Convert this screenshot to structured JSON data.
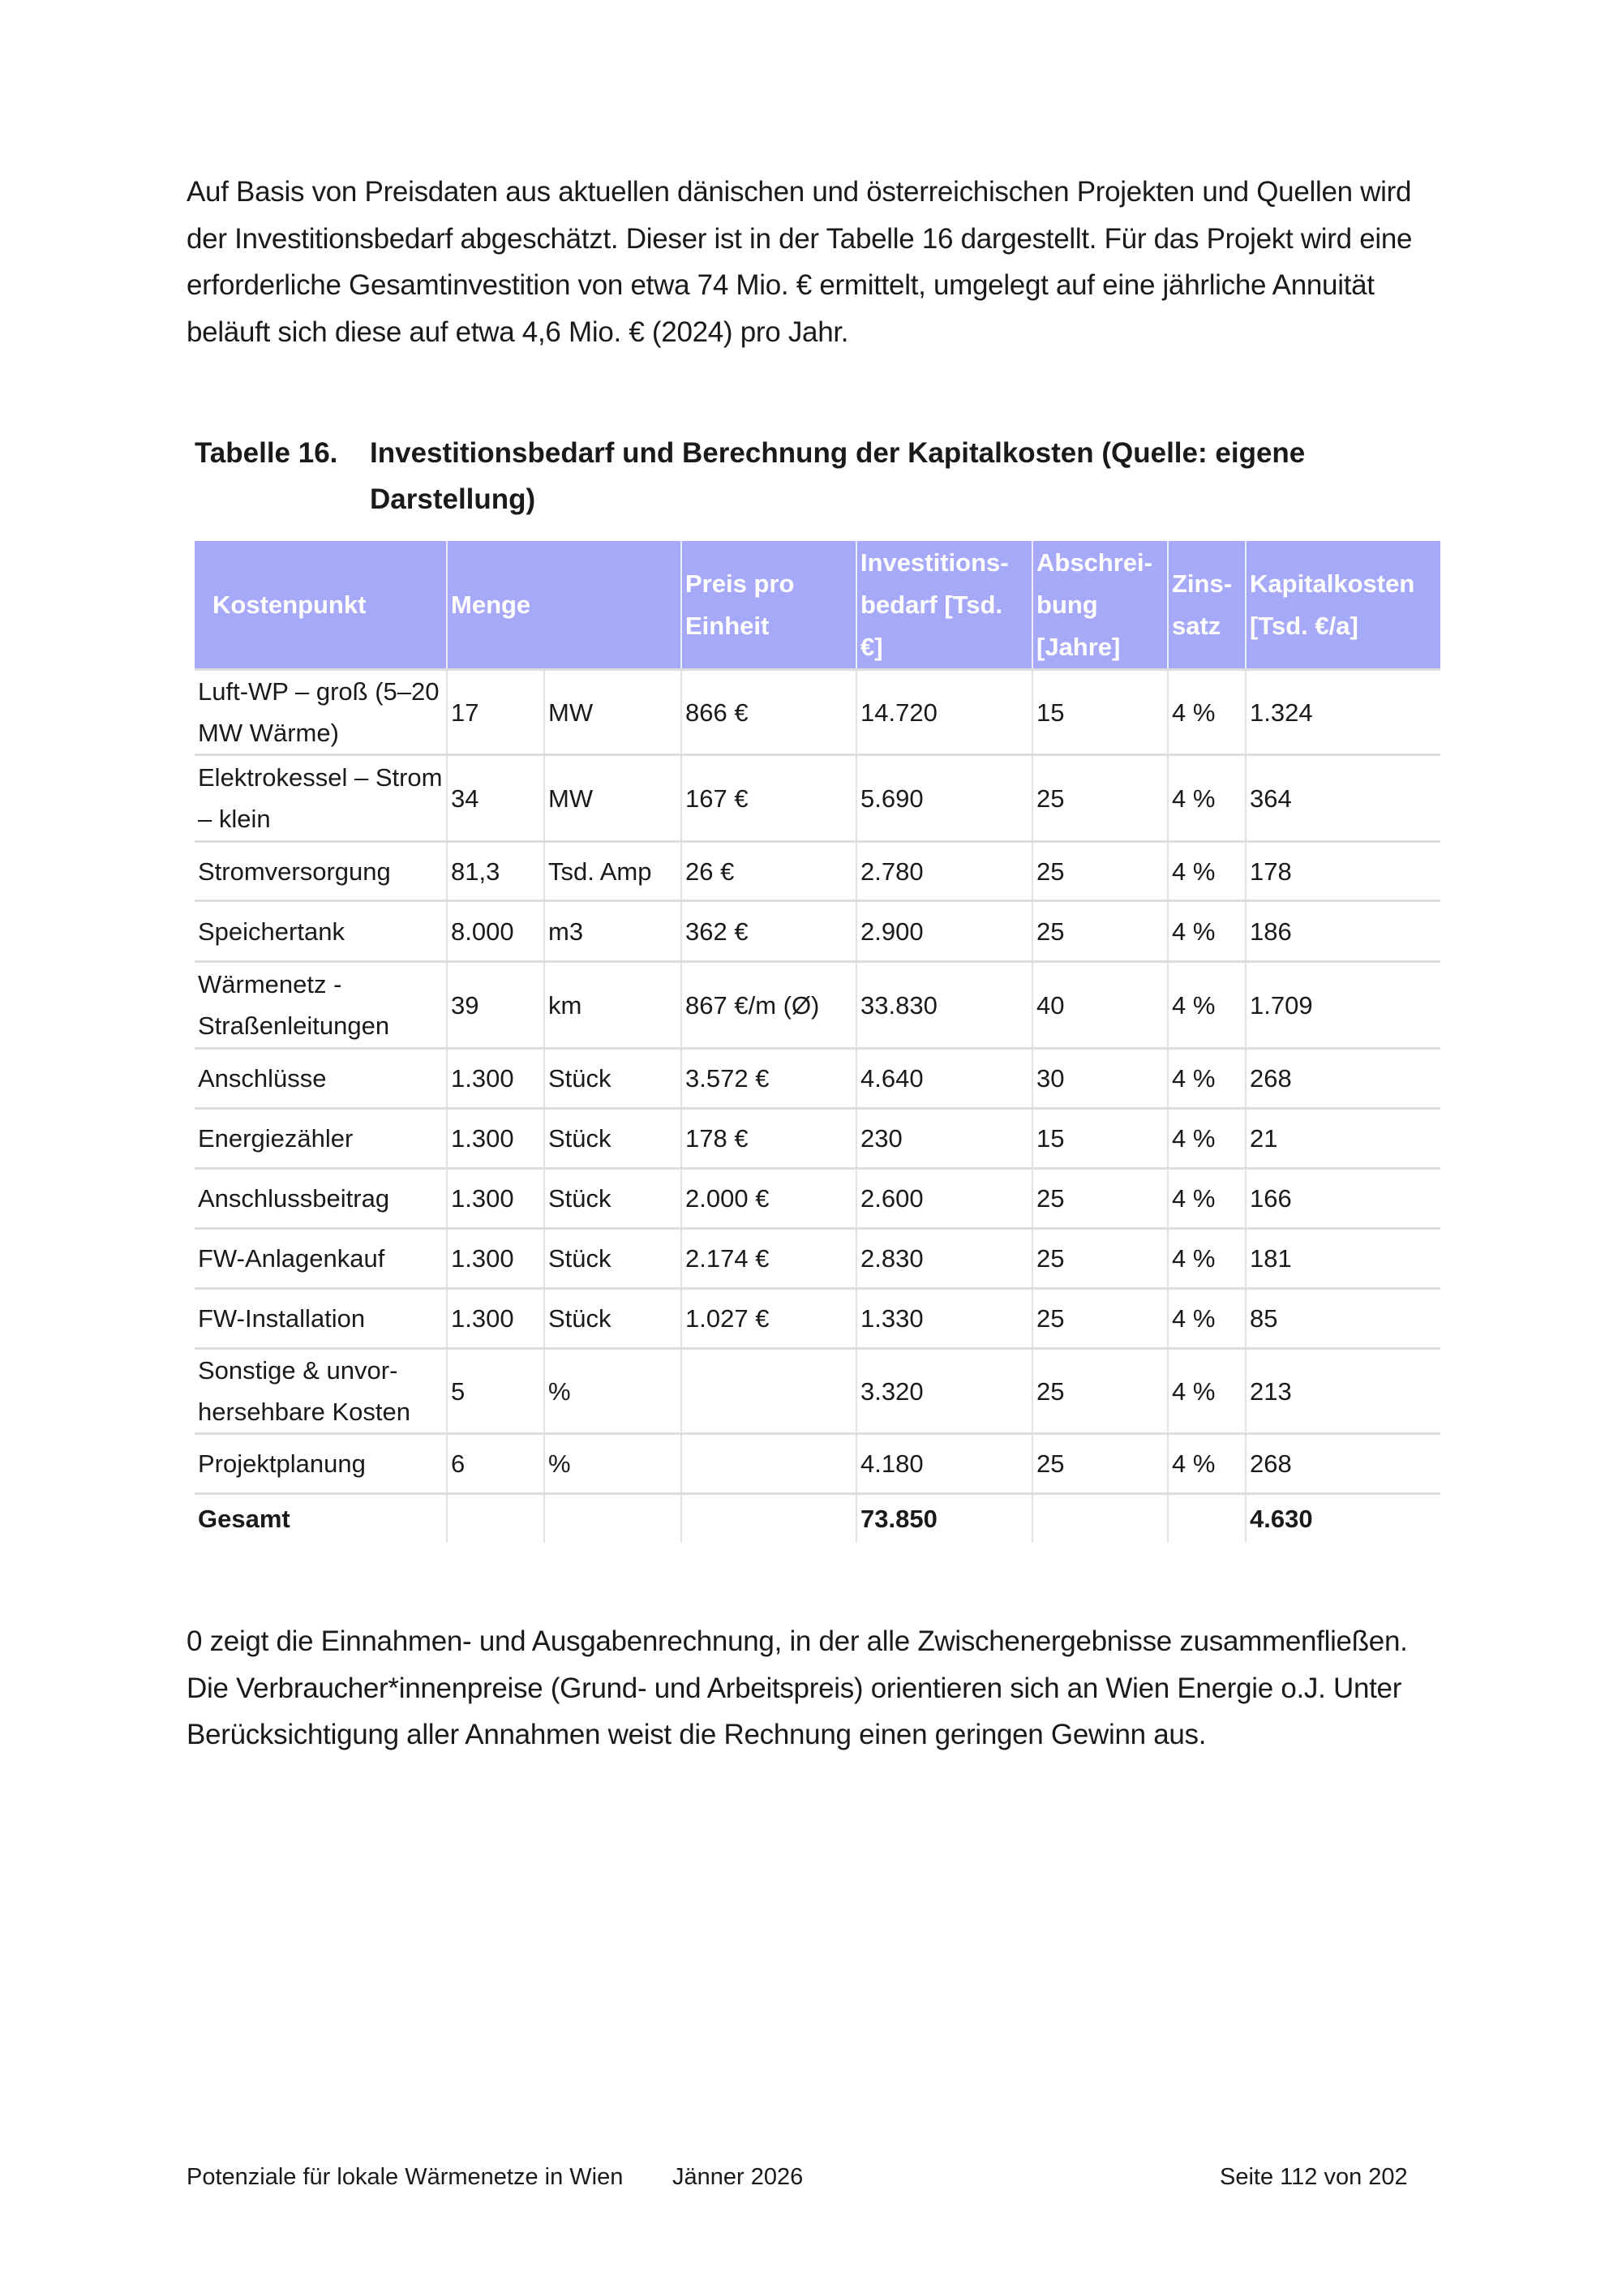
{
  "intro_paragraph": "Auf Basis von Preisdaten aus aktuellen dänischen und österreichischen Projekten und Quellen wird der Investitionsbedarf abgeschätzt. Dieser ist in der Tabelle 16 dargestellt. Für das Projekt wird eine erforderliche Gesamtinvestition von etwa 74 Mio. € ermittelt, umgelegt auf eine jährliche Annuität beläuft sich diese auf etwa 4,6 Mio. € (2024) pro Jahr.",
  "caption": {
    "number": "Tabelle 16.",
    "text": "Investitionsbedarf und Berechnung der Kapitalkosten (Quelle:  eigene Darstellung)"
  },
  "table": {
    "headers": [
      "Kostenpunkt",
      "Menge",
      "Preis pro Einheit",
      "Investitions-bedarf [Tsd. €]",
      "Abschrei-bung [Jahre]",
      "Zins-satz",
      "Kapitalkosten [Tsd. €/a]"
    ],
    "rows": [
      [
        "Luft-WP – groß (5–20 MW Wärme)",
        "17",
        "MW",
        "866 €",
        "14.720",
        "15",
        "4 %",
        "1.324"
      ],
      [
        "Elektrokessel – Strom – klein",
        "34",
        "MW",
        "167 €",
        "5.690",
        "25",
        "4 %",
        "364"
      ],
      [
        "Stromversorgung",
        "81,3",
        "Tsd. Amp",
        "26 €",
        "2.780",
        "25",
        "4 %",
        "178"
      ],
      [
        "Speichertank",
        "8.000",
        "m3",
        "362 €",
        "2.900",
        "25",
        "4 %",
        "186"
      ],
      [
        "Wärmenetz - Straßenleitungen",
        "39",
        "km",
        "867 €/m (Ø)",
        "33.830",
        "40",
        "4 %",
        "1.709"
      ],
      [
        "Anschlüsse",
        "1.300",
        "Stück",
        "3.572 €",
        "4.640",
        "30",
        "4 %",
        "268"
      ],
      [
        "Energiezähler",
        "1.300",
        "Stück",
        "178 €",
        "230",
        "15",
        "4 %",
        "21"
      ],
      [
        "Anschlussbeitrag",
        "1.300",
        "Stück",
        "2.000 €",
        "2.600",
        "25",
        "4 %",
        "166"
      ],
      [
        "FW-Anlagenkauf",
        "1.300",
        "Stück",
        "2.174 €",
        "2.830",
        "25",
        "4 %",
        "181"
      ],
      [
        "FW-Installation",
        "1.300",
        "Stück",
        "1.027 €",
        "1.330",
        "25",
        "4 %",
        "85"
      ],
      [
        "Sonstige & unvor-hersehbare Kosten",
        "5",
        "%",
        "",
        "3.320",
        "25",
        "4 %",
        "213"
      ],
      [
        "Projektplanung",
        "6",
        "%",
        "",
        "4.180",
        "25",
        "4 %",
        "268"
      ],
      [
        "Gesamt",
        "",
        "",
        "",
        "73.850",
        "",
        "",
        "4.630"
      ]
    ],
    "header_color": "#a6a8f8"
  },
  "outro_paragraph": "0 zeigt die Einnahmen- und Ausgabenrechnung, in der alle Zwischenergebnisse zusammenfließen. Die Verbraucher*innenpreise (Grund- und Arbeitspreis) orientieren sich an Wien Energie o.J. Unter Berücksichtigung aller Annahmen weist die Rechnung einen geringen Gewinn aus.",
  "footer": {
    "title": "Potenziale für lokale Wärmenetze in Wien",
    "date": "Jänner 2026",
    "page": "Seite 112 von 202"
  }
}
